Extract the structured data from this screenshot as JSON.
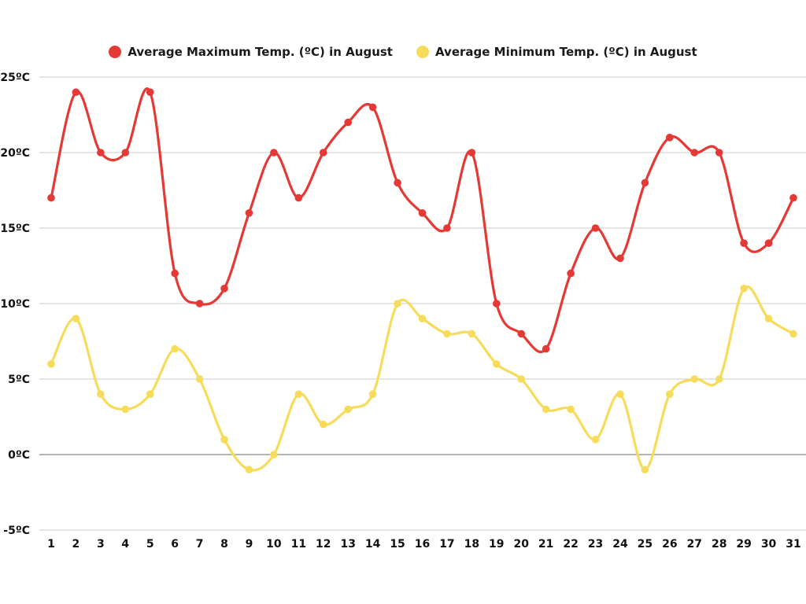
{
  "chart_data": {
    "type": "line",
    "categories": [
      "1",
      "2",
      "3",
      "4",
      "5",
      "6",
      "7",
      "8",
      "9",
      "10",
      "11",
      "12",
      "13",
      "14",
      "15",
      "16",
      "17",
      "18",
      "19",
      "20",
      "21",
      "22",
      "23",
      "24",
      "25",
      "26",
      "27",
      "28",
      "29",
      "30",
      "31"
    ],
    "series": [
      {
        "name": "Average Maximum Temp. (ºC) in August",
        "color": "#e53935",
        "values": [
          17,
          24,
          20,
          20,
          24,
          12,
          10,
          11,
          16,
          20,
          17,
          20,
          22,
          23,
          18,
          16,
          15,
          20,
          10,
          8,
          7,
          12,
          15,
          13,
          18,
          21,
          20,
          20,
          14,
          14,
          17
        ]
      },
      {
        "name": "Average Minimum Temp. (ºC) in August",
        "color": "#f7dc5c",
        "values": [
          6,
          9,
          4,
          3,
          4,
          7,
          5,
          1,
          -1,
          0,
          4,
          2,
          3,
          4,
          10,
          9,
          8,
          8,
          6,
          5,
          3,
          3,
          1,
          4,
          -1,
          4,
          5,
          5,
          11,
          9,
          8
        ]
      }
    ],
    "y_ticks": [
      "25ºC",
      "20ºC",
      "15ºC",
      "10ºC",
      "5ºC",
      "0ºC",
      "-5ºC"
    ],
    "y_tick_values": [
      25,
      20,
      15,
      10,
      5,
      0,
      -5
    ],
    "ylim": [
      -5,
      25
    ],
    "grid": true,
    "legend_position": "top-center",
    "zero_line_color": "#888888",
    "grid_color": "#cccccc"
  }
}
